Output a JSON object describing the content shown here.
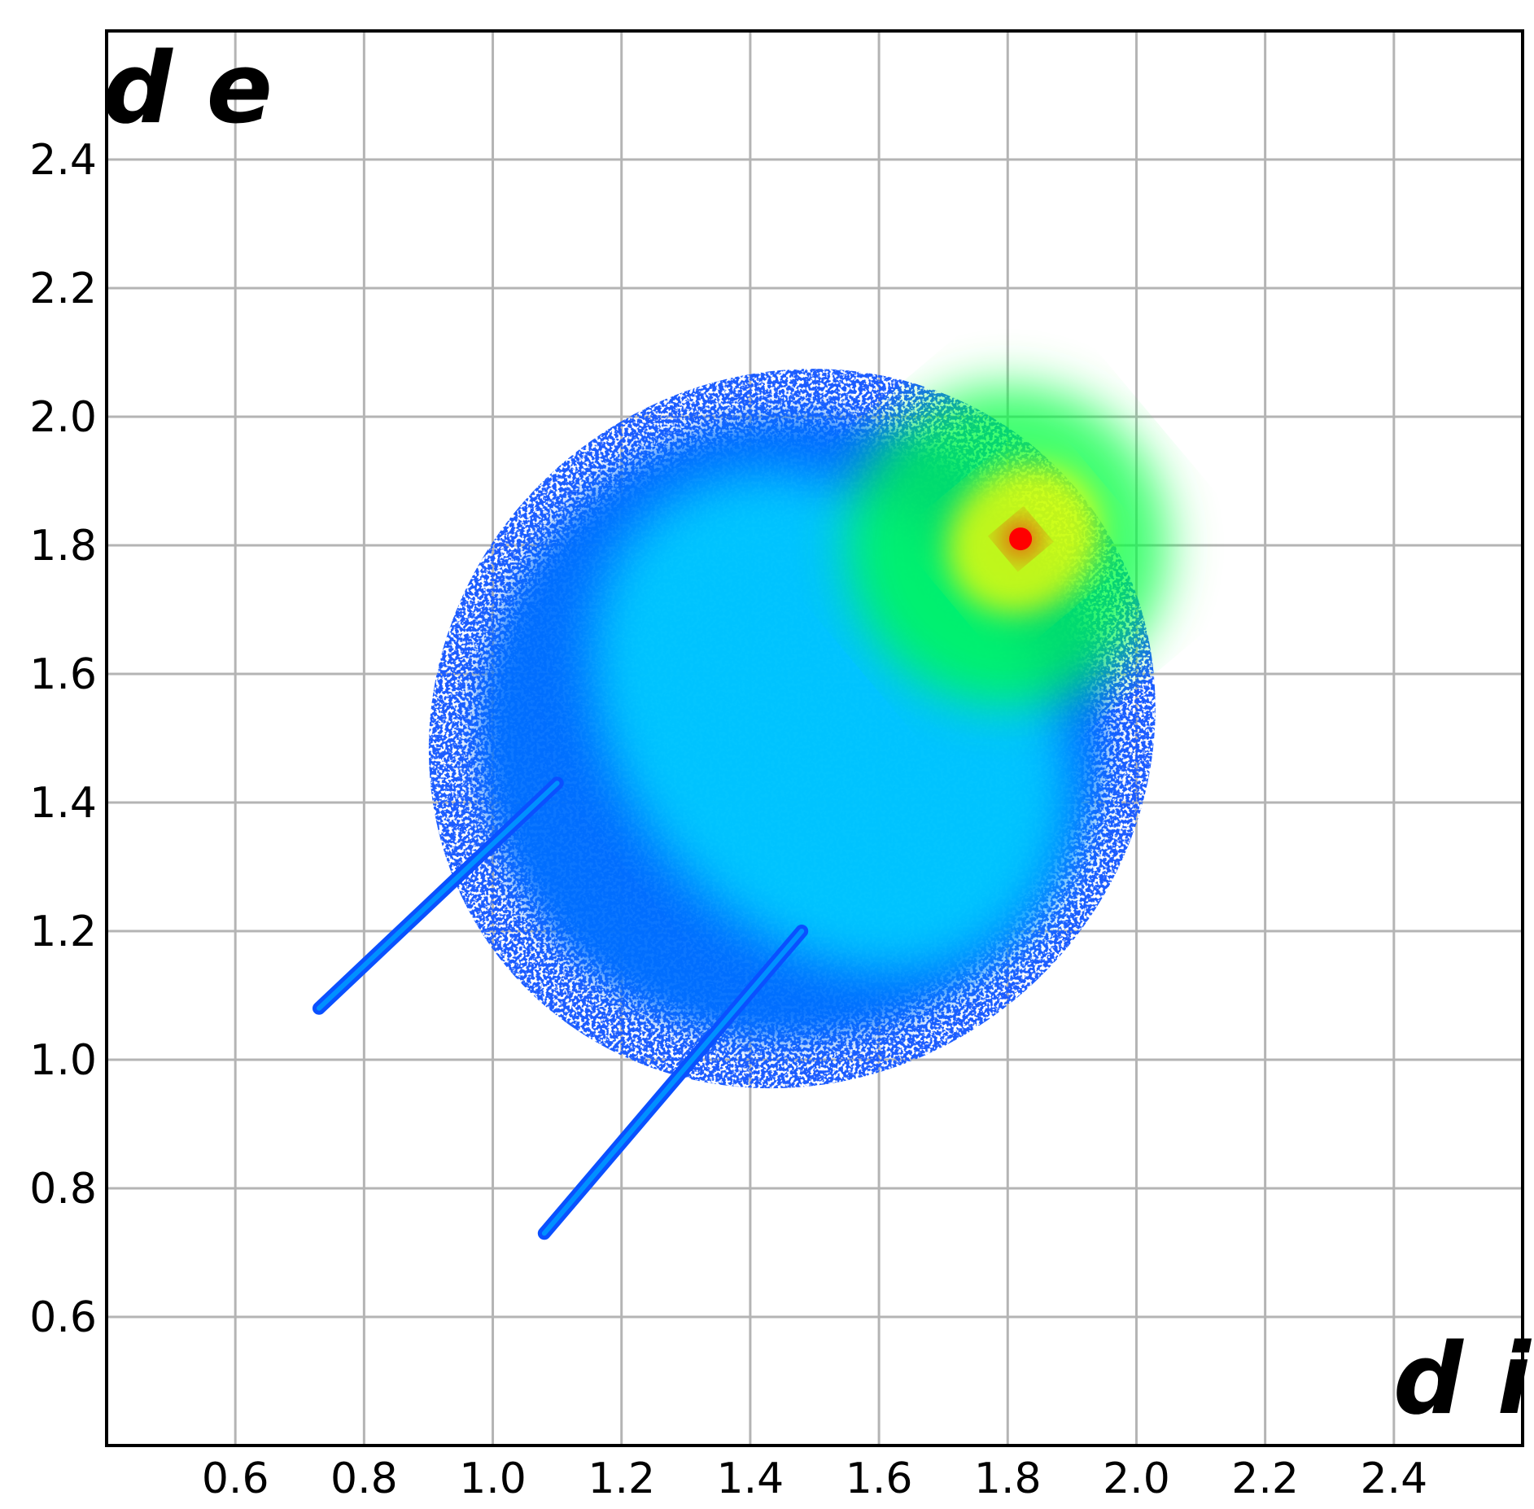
{
  "chart_data": {
    "type": "heatmap",
    "title": "",
    "xlabel": "d i",
    "ylabel": "d e",
    "xlim": [
      0.4,
      2.6
    ],
    "ylim": [
      0.4,
      2.6
    ],
    "grid": true,
    "legend": "none",
    "x_ticks": [
      {
        "value": 0.6,
        "label": "0.6"
      },
      {
        "value": 0.8,
        "label": "0.8"
      },
      {
        "value": 1.0,
        "label": "1.0"
      },
      {
        "value": 1.2,
        "label": "1.2"
      },
      {
        "value": 1.4,
        "label": "1.4"
      },
      {
        "value": 1.6,
        "label": "1.6"
      },
      {
        "value": 1.8,
        "label": "1.8"
      },
      {
        "value": 2.0,
        "label": "2.0"
      },
      {
        "value": 2.2,
        "label": "2.2"
      },
      {
        "value": 2.4,
        "label": "2.4"
      }
    ],
    "y_ticks": [
      {
        "value": 0.6,
        "label": "0.6"
      },
      {
        "value": 0.8,
        "label": "0.8"
      },
      {
        "value": 1.0,
        "label": "1.0"
      },
      {
        "value": 1.2,
        "label": "1.2"
      },
      {
        "value": 1.4,
        "label": "1.4"
      },
      {
        "value": 1.6,
        "label": "1.6"
      },
      {
        "value": 1.8,
        "label": "1.8"
      },
      {
        "value": 2.0,
        "label": "2.0"
      },
      {
        "value": 2.2,
        "label": "2.2"
      },
      {
        "value": 2.4,
        "label": "2.4"
      }
    ],
    "colormap": [
      "#0000ff",
      "#0070ff",
      "#00e0ff",
      "#00ff40",
      "#ffff00",
      "#ff0000"
    ],
    "density_regions": [
      {
        "x": [
          0.93,
          2.0
        ],
        "y": [
          0.98,
          2.05
        ],
        "level": 0.28
      },
      {
        "x": [
          1.2,
          1.85
        ],
        "y": [
          1.1,
          1.95
        ],
        "level": 0.45
      },
      {
        "x": [
          1.55,
          2.05
        ],
        "y": [
          1.55,
          2.05
        ],
        "level": 0.6
      },
      {
        "x": [
          1.7,
          1.95
        ],
        "y": [
          1.7,
          1.92
        ],
        "level": 0.8
      },
      {
        "x": [
          1.79,
          1.85
        ],
        "y": [
          1.78,
          1.84
        ],
        "level": 1.0
      }
    ],
    "spikes": [
      {
        "from": [
          0.73,
          1.08
        ],
        "to": [
          1.1,
          1.43
        ],
        "level": 0.35
      },
      {
        "from": [
          1.08,
          0.73
        ],
        "to": [
          1.48,
          1.2
        ],
        "level": 0.35
      }
    ],
    "peak": {
      "x": 1.82,
      "y": 1.81,
      "level": 1.0
    }
  }
}
